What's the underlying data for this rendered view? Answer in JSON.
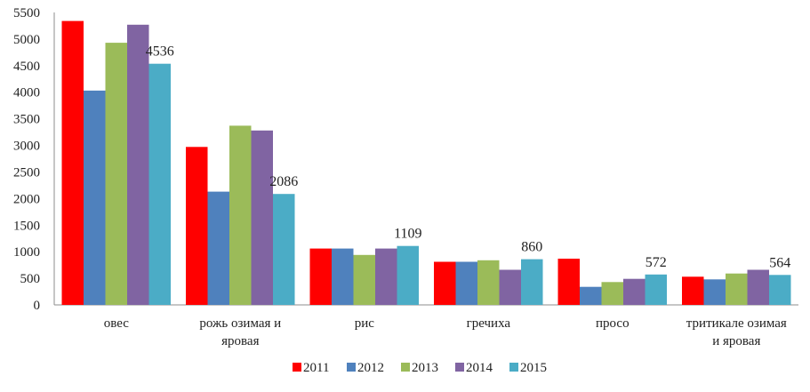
{
  "chart_data": {
    "type": "bar",
    "categories": [
      [
        "овес"
      ],
      [
        "рожь озимая и",
        "яровая"
      ],
      [
        "рис"
      ],
      [
        "гречиха"
      ],
      [
        "просо"
      ],
      [
        "тритикале озимая",
        "и яровая"
      ]
    ],
    "series": [
      {
        "name": "2011",
        "color": "#ff0000",
        "values": [
          5340,
          2970,
          1060,
          810,
          870,
          530
        ]
      },
      {
        "name": "2012",
        "color": "#4f81bd",
        "values": [
          4030,
          2130,
          1060,
          810,
          340,
          480
        ]
      },
      {
        "name": "2013",
        "color": "#9bbb59",
        "values": [
          4930,
          3370,
          940,
          840,
          430,
          590
        ]
      },
      {
        "name": "2014",
        "color": "#8064a2",
        "values": [
          5270,
          3280,
          1060,
          660,
          490,
          660
        ]
      },
      {
        "name": "2015",
        "color": "#4bacc6",
        "values": [
          4536,
          2086,
          1109,
          860,
          572,
          564
        ]
      }
    ],
    "data_labels": {
      "series_index": 4,
      "values": [
        "4536",
        "2086",
        "1109",
        "860",
        "572",
        "564"
      ]
    },
    "ylim": [
      0,
      5500
    ],
    "yticks": [
      "0",
      "500",
      "1000",
      "1500",
      "2000",
      "2500",
      "3000",
      "3500",
      "4000",
      "4500",
      "5000",
      "5500"
    ],
    "grid": false,
    "legend_position": "bottom",
    "title": "",
    "xlabel": "",
    "ylabel": ""
  }
}
